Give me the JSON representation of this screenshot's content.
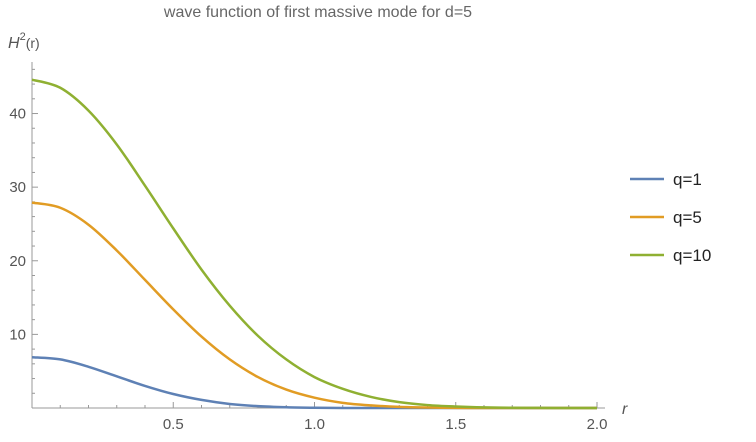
{
  "chart_data": {
    "type": "line",
    "title": "wave function of first massive mode for d=5",
    "ylabel_base": "H",
    "ylabel_sup": "2",
    "ylabel_arg": "(r)",
    "xlabel": "r",
    "xlim": [
      0,
      2.0
    ],
    "ylim": [
      0,
      47
    ],
    "x_ticks": [
      0.5,
      1.0,
      1.5,
      2.0
    ],
    "x_tick_labels": [
      "0.5",
      "1.0",
      "1.5",
      "2.0"
    ],
    "y_ticks": [
      10,
      20,
      30,
      40
    ],
    "y_tick_labels": [
      "10",
      "20",
      "30",
      "40"
    ],
    "grid": false,
    "legend_placement": "right",
    "series": [
      {
        "name": "q=1",
        "color": "#5e81b5",
        "x": [
          0,
          0.1,
          0.2,
          0.3,
          0.4,
          0.5,
          0.6,
          0.7,
          0.8,
          0.9,
          1.0,
          1.1,
          1.2,
          1.3,
          1.4,
          1.5,
          1.6,
          1.7,
          1.8,
          1.9,
          2.0
        ],
        "y": [
          6.9,
          6.6,
          5.6,
          4.3,
          3.0,
          1.9,
          1.1,
          0.55,
          0.25,
          0.1,
          0.03,
          0,
          0,
          0,
          0,
          0,
          0,
          0,
          0,
          0,
          0
        ]
      },
      {
        "name": "q=5",
        "color": "#e19c24",
        "x": [
          0,
          0.1,
          0.2,
          0.3,
          0.4,
          0.5,
          0.6,
          0.7,
          0.8,
          0.9,
          1.0,
          1.1,
          1.2,
          1.3,
          1.4,
          1.5,
          1.6,
          1.7,
          1.8,
          1.9,
          2.0
        ],
        "y": [
          27.9,
          27.2,
          24.9,
          21.4,
          17.4,
          13.4,
          9.7,
          6.6,
          4.2,
          2.5,
          1.4,
          0.7,
          0.35,
          0.15,
          0.06,
          0.02,
          0,
          0,
          0,
          0,
          0
        ]
      },
      {
        "name": "q=10",
        "color": "#8fb032",
        "x": [
          0,
          0.1,
          0.2,
          0.3,
          0.4,
          0.5,
          0.6,
          0.7,
          0.8,
          0.9,
          1.0,
          1.1,
          1.2,
          1.3,
          1.4,
          1.5,
          1.6,
          1.7,
          1.8,
          1.9,
          2.0
        ],
        "y": [
          44.6,
          43.5,
          40.4,
          35.8,
          30.2,
          24.4,
          18.8,
          13.9,
          9.8,
          6.6,
          4.2,
          2.6,
          1.5,
          0.8,
          0.4,
          0.2,
          0.08,
          0.03,
          0.01,
          0,
          0
        ]
      }
    ]
  }
}
